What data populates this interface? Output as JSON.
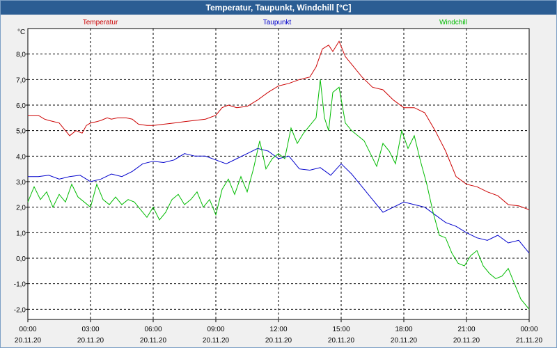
{
  "window": {
    "title": "Temperatur, Taupunkt, Windchill [°C]"
  },
  "chart_data": {
    "type": "line",
    "title": "Temperatur, Taupunkt, Windchill [°C]",
    "ylabel": "°C",
    "ylim": [
      -2.4,
      9.0
    ],
    "xlim": [
      0,
      24
    ],
    "y_ticks": [
      8.0,
      7.0,
      6.0,
      5.0,
      4.0,
      3.0,
      2.0,
      1.0,
      0.0,
      -1.0,
      -2.0
    ],
    "y_tick_labels": [
      "8,0",
      "7,0",
      "6,0",
      "5,0",
      "4,0",
      "3,0",
      "2,0",
      "1,0",
      "0,0",
      "-1,0",
      "-2,0"
    ],
    "x_ticks": [
      {
        "time": "00:00",
        "date": "20.11.20"
      },
      {
        "time": "03:00",
        "date": "20.11.20"
      },
      {
        "time": "06:00",
        "date": "20.11.20"
      },
      {
        "time": "09:00",
        "date": "20.11.20"
      },
      {
        "time": "12:00",
        "date": "20.11.20"
      },
      {
        "time": "15:00",
        "date": "20.11.20"
      },
      {
        "time": "18:00",
        "date": "20.11.20"
      },
      {
        "time": "21:00",
        "date": "20.11.20"
      },
      {
        "time": "00:00",
        "date": "21.11.20"
      }
    ],
    "grid": true,
    "series": [
      {
        "name": "Temperatur",
        "color": "#cc0000",
        "x": [
          0,
          0.5,
          0.8,
          1,
          1.5,
          1.8,
          2,
          2.3,
          2.6,
          2.8,
          3,
          3.3,
          3.5,
          3.8,
          4,
          4.3,
          4.7,
          5,
          5.3,
          5.7,
          6,
          6.5,
          7,
          7.5,
          8,
          8.5,
          9,
          9.3,
          9.6,
          10,
          10.5,
          11,
          11.5,
          12,
          12.5,
          13,
          13.5,
          13.8,
          14.1,
          14.4,
          14.6,
          14.9,
          15.2,
          15.5,
          16,
          16.5,
          17,
          17.5,
          18,
          18.5,
          19,
          19.5,
          20,
          20.5,
          21,
          21.5,
          22,
          22.5,
          23,
          23.5,
          24
        ],
        "values": [
          5.6,
          5.6,
          5.45,
          5.4,
          5.3,
          5.0,
          4.8,
          5.0,
          4.9,
          5.2,
          5.3,
          5.35,
          5.4,
          5.5,
          5.45,
          5.5,
          5.5,
          5.45,
          5.25,
          5.2,
          5.2,
          5.25,
          5.3,
          5.35,
          5.4,
          5.45,
          5.6,
          5.9,
          6.0,
          5.9,
          5.95,
          6.2,
          6.5,
          6.75,
          6.85,
          7.0,
          7.1,
          7.5,
          8.2,
          8.35,
          8.1,
          8.5,
          7.9,
          7.6,
          7.1,
          6.7,
          6.6,
          6.2,
          5.9,
          5.9,
          5.7,
          5.0,
          4.2,
          3.2,
          2.9,
          2.8,
          2.6,
          2.45,
          2.1,
          2.05,
          1.9
        ]
      },
      {
        "name": "Taupunkt",
        "color": "#0000cc",
        "x": [
          0,
          0.5,
          1,
          1.5,
          2,
          2.5,
          3,
          3.5,
          4,
          4.5,
          5,
          5.5,
          6,
          6.5,
          7,
          7.5,
          8,
          8.5,
          9,
          9.5,
          10,
          10.5,
          11,
          11.5,
          12,
          12.5,
          13,
          13.5,
          14,
          14.5,
          15,
          15.5,
          16,
          16.5,
          17,
          17.5,
          18,
          18.5,
          19,
          19.5,
          20,
          20.5,
          21,
          21.5,
          22,
          22.5,
          23,
          23.5,
          24
        ],
        "values": [
          3.2,
          3.2,
          3.25,
          3.1,
          3.2,
          3.25,
          3.0,
          3.1,
          3.3,
          3.2,
          3.4,
          3.7,
          3.8,
          3.75,
          3.85,
          4.1,
          4.0,
          4.0,
          3.85,
          3.7,
          3.9,
          4.1,
          4.3,
          4.2,
          3.9,
          4.0,
          3.5,
          3.45,
          3.55,
          3.25,
          3.7,
          3.3,
          2.8,
          2.3,
          1.8,
          2.0,
          2.2,
          2.1,
          2.0,
          1.7,
          1.4,
          1.25,
          1.0,
          0.8,
          0.7,
          0.9,
          0.6,
          0.7,
          0.2
        ]
      },
      {
        "name": "Windchill",
        "color": "#00bb00",
        "x": [
          0,
          0.3,
          0.6,
          0.9,
          1.2,
          1.5,
          1.8,
          2.1,
          2.4,
          2.7,
          3,
          3.3,
          3.6,
          3.9,
          4.2,
          4.5,
          4.8,
          5.1,
          5.4,
          5.7,
          6,
          6.3,
          6.6,
          6.9,
          7.2,
          7.5,
          7.8,
          8.1,
          8.4,
          8.7,
          9,
          9.3,
          9.6,
          9.9,
          10.2,
          10.5,
          10.8,
          11.1,
          11.4,
          11.7,
          12,
          12.3,
          12.6,
          12.9,
          13.2,
          13.5,
          13.8,
          14,
          14.2,
          14.4,
          14.6,
          14.9,
          15.2,
          15.5,
          15.8,
          16.1,
          16.4,
          16.7,
          17,
          17.3,
          17.6,
          17.9,
          18.2,
          18.5,
          18.8,
          19.1,
          19.4,
          19.7,
          20,
          20.3,
          20.6,
          20.9,
          21.2,
          21.5,
          21.8,
          22.1,
          22.4,
          22.7,
          23,
          23.3,
          23.6,
          24
        ],
        "values": [
          2.2,
          2.8,
          2.3,
          2.6,
          2.0,
          2.5,
          2.2,
          2.9,
          2.4,
          2.2,
          2.0,
          2.9,
          2.3,
          2.1,
          2.4,
          2.1,
          2.3,
          2.2,
          1.9,
          1.6,
          2.0,
          1.5,
          1.8,
          2.3,
          2.5,
          2.1,
          2.3,
          2.6,
          2.0,
          2.3,
          1.7,
          2.7,
          3.1,
          2.5,
          3.2,
          2.6,
          3.5,
          4.6,
          3.5,
          3.9,
          4.1,
          3.9,
          5.1,
          4.5,
          4.9,
          5.2,
          5.5,
          7.0,
          5.5,
          5.0,
          6.5,
          6.7,
          5.3,
          5.0,
          4.8,
          4.6,
          4.1,
          3.6,
          4.5,
          4.2,
          3.7,
          5.0,
          4.3,
          4.8,
          3.8,
          2.9,
          1.8,
          0.9,
          0.8,
          0.2,
          -0.2,
          -0.3,
          0.1,
          0.3,
          -0.3,
          -0.6,
          -0.8,
          -0.7,
          -0.4,
          -1.0,
          -1.6,
          -2.0
        ]
      }
    ]
  }
}
